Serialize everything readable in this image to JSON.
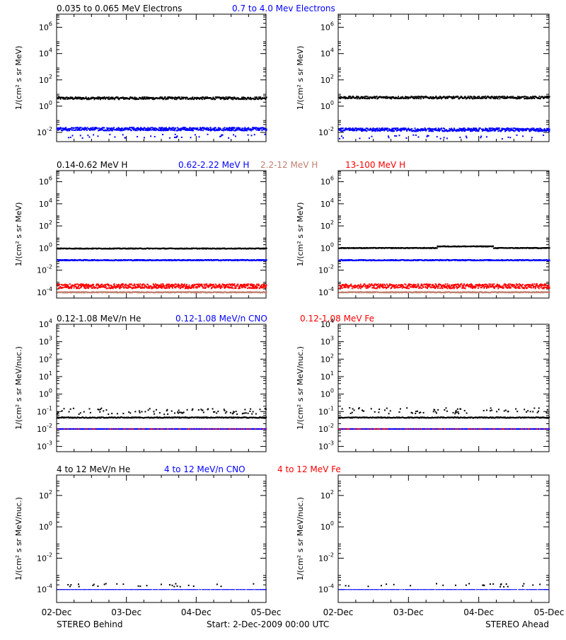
{
  "chart_data": [
    {
      "type": "scatter",
      "panel": "electrons",
      "legend": [
        {
          "text": "0.035 to 0.065 MeV Electrons",
          "color": "#000000"
        },
        {
          "text": "0.7 to 4.0 Mev Electrons",
          "color": "#0000ff"
        }
      ],
      "ylabel": "1/(cm² s sr MeV)",
      "yscale": "log",
      "ylim": [
        0.002,
        10000000
      ],
      "yticks": [
        {
          "exp": "-2"
        },
        {
          "exp": "0"
        },
        {
          "exp": "2"
        },
        {
          "exp": "4"
        },
        {
          "exp": "6"
        }
      ],
      "xlim": [
        0,
        3
      ],
      "sides": [
        {
          "side": "behind",
          "series": [
            {
              "color": "#000000",
              "level": 4.0,
              "jitter": 0.09
            },
            {
              "color": "#0000ff",
              "level": 0.018,
              "jitter": 0.12,
              "dips": true
            }
          ]
        },
        {
          "side": "ahead",
          "series": [
            {
              "color": "#000000",
              "level": 4.5,
              "jitter": 0.09
            },
            {
              "color": "#0000ff",
              "level": 0.016,
              "jitter": 0.12,
              "dips": true
            }
          ]
        }
      ]
    },
    {
      "type": "scatter",
      "panel": "protons",
      "legend": [
        {
          "text": "0.14-0.62 MeV H",
          "color": "#000000"
        },
        {
          "text": "0.62-2.22 MeV H",
          "color": "#0000ff"
        },
        {
          "text": "2.2-12 MeV H",
          "color": "#c08070"
        },
        {
          "text": "13-100 MeV H",
          "color": "#ff0000"
        }
      ],
      "ylabel": "1/(cm² s sr MeV)",
      "yscale": "log",
      "ylim": [
        3e-05,
        10000000
      ],
      "yticks": [
        {
          "exp": "-4"
        },
        {
          "exp": "-2"
        },
        {
          "exp": "0"
        },
        {
          "exp": "2"
        },
        {
          "exp": "4"
        },
        {
          "exp": "6"
        }
      ],
      "xlim": [
        0,
        3
      ],
      "sides": [
        {
          "side": "behind",
          "series": [
            {
              "color": "#000000",
              "level": 0.9,
              "jitter": 0.03
            },
            {
              "color": "#0000ff",
              "level": 0.08,
              "jitter": 0.04
            },
            {
              "color": "#c08070",
              "level": 0.0001,
              "jitter": 0.04
            },
            {
              "color": "#ff0000",
              "level": 0.00035,
              "jitter": 0.2
            }
          ]
        },
        {
          "side": "ahead",
          "series": [
            {
              "color": "#000000",
              "level": 1.0,
              "jitter": 0.03,
              "bump": true
            },
            {
              "color": "#0000ff",
              "level": 0.08,
              "jitter": 0.04
            },
            {
              "color": "#c08070",
              "level": 0.0001,
              "jitter": 0.04
            },
            {
              "color": "#ff0000",
              "level": 0.00035,
              "jitter": 0.2
            }
          ]
        }
      ]
    },
    {
      "type": "scatter",
      "panel": "heavy-ions-low",
      "legend": [
        {
          "text": "0.12-1.08 MeV/n He",
          "color": "#000000"
        },
        {
          "text": "0.12-1.08 MeV/n CNO",
          "color": "#0000ff"
        },
        {
          "text": "0.12-1.08 MeV Fe",
          "color": "#ff0000"
        }
      ],
      "ylabel": "1/(cm² s sr MeV/nuc.)",
      "yscale": "log",
      "ylim": [
        0.0005,
        10000
      ],
      "yticks": [
        {
          "exp": "-3"
        },
        {
          "exp": "-2"
        },
        {
          "exp": "-1"
        },
        {
          "exp": "0"
        },
        {
          "exp": "1"
        },
        {
          "exp": "2"
        },
        {
          "exp": "3"
        },
        {
          "exp": "4"
        }
      ],
      "xlim": [
        0,
        3
      ],
      "sides": [
        {
          "side": "behind",
          "series": [
            {
              "color": "#000000",
              "level": 0.045,
              "sparse": 0.095
            },
            {
              "color": "#0000ff",
              "level": 0.01,
              "mixed": true
            }
          ]
        },
        {
          "side": "ahead",
          "series": [
            {
              "color": "#000000",
              "level": 0.045,
              "sparse": 0.1
            },
            {
              "color": "#0000ff",
              "level": 0.01,
              "mixed": true
            }
          ]
        }
      ]
    },
    {
      "type": "scatter",
      "panel": "heavy-ions-high",
      "legend": [
        {
          "text": "4 to 12 MeV/n He",
          "color": "#000000"
        },
        {
          "text": "4 to 12 MeV/n CNO",
          "color": "#0000ff"
        },
        {
          "text": "4 to 12 MeV Fe",
          "color": "#ff0000"
        }
      ],
      "ylabel": "1/(cm² s sr MeV/nuc.)",
      "yscale": "log",
      "ylim": [
        1.5e-05,
        2000
      ],
      "yticks": [
        {
          "exp": "-4"
        },
        {
          "exp": "-2"
        },
        {
          "exp": "0"
        },
        {
          "exp": "2"
        }
      ],
      "xlim": [
        0,
        3
      ],
      "sides": [
        {
          "side": "behind",
          "series": [
            {
              "color": "#0000ff",
              "level": 0.0001,
              "line": true
            },
            {
              "color": "#000000",
              "level": 0.00015,
              "sparse_only": true
            }
          ]
        },
        {
          "side": "ahead",
          "series": [
            {
              "color": "#0000ff",
              "level": 0.0001,
              "line": true
            },
            {
              "color": "#000000",
              "level": 0.00015,
              "sparse_only": true
            }
          ]
        }
      ]
    }
  ],
  "xticks": [
    "02-Dec",
    "03-Dec",
    "04-Dec",
    "05-Dec"
  ],
  "footer": {
    "left": "STEREO Behind",
    "center": "Start:  2-Dec-2009 00:00 UTC",
    "right": "STEREO Ahead"
  }
}
